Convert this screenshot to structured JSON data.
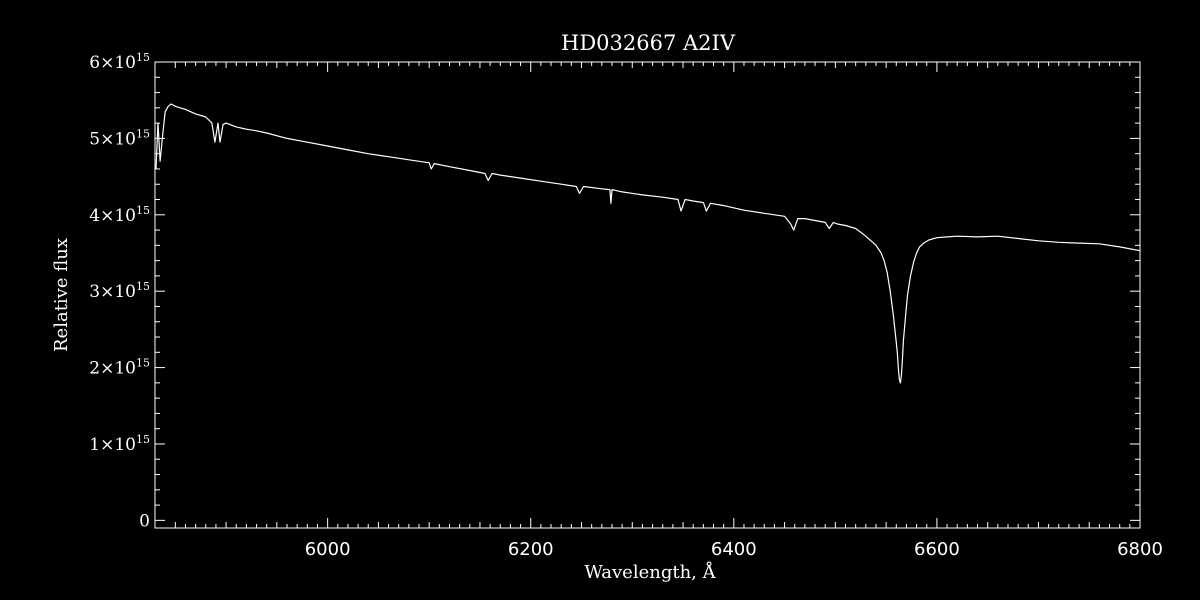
{
  "chart_data": {
    "type": "line",
    "title": "HD032667   A2IV",
    "xlabel": "Wavelength, Å",
    "ylabel": "Relative flux",
    "xlim": [
      5830,
      6800
    ],
    "ylim": [
      -0.1,
      6.0
    ],
    "y_exponent": "15",
    "x_ticks": [
      6000,
      6200,
      6400,
      6600,
      6800
    ],
    "x_tick_labels": [
      "6000",
      "6200",
      "6400",
      "6600",
      "6800"
    ],
    "y_ticks": [
      0,
      1,
      2,
      3,
      4,
      5,
      6
    ],
    "y_tick_labels": [
      "0",
      "1×10",
      "2×10",
      "3×10",
      "4×10",
      "5×10",
      "6×10"
    ],
    "series": [
      {
        "color": "#ffffff",
        "x": [
          5831,
          5833,
          5835,
          5838,
          5840,
          5843,
          5846,
          5850,
          5860,
          5870,
          5880,
          5886,
          5889,
          5892,
          5894,
          5897,
          5900,
          5910,
          5920,
          5930,
          5940,
          5960,
          5980,
          6000,
          6020,
          6040,
          6060,
          6080,
          6100,
          6102,
          6105,
          6120,
          6140,
          6155,
          6158,
          6162,
          6170,
          6190,
          6210,
          6230,
          6245,
          6248,
          6252,
          6270,
          6278,
          6279,
          6280,
          6290,
          6310,
          6330,
          6345,
          6348,
          6352,
          6360,
          6370,
          6373,
          6377,
          6390,
          6410,
          6430,
          6450,
          6456,
          6459,
          6463,
          6470,
          6490,
          6494,
          6498,
          6502,
          6510,
          6520,
          6530,
          6540,
          6545,
          6548,
          6551,
          6554,
          6557,
          6559,
          6561,
          6562,
          6563,
          6564,
          6565,
          6566,
          6567,
          6569,
          6571,
          6574,
          6577,
          6580,
          6583,
          6587,
          6592,
          6600,
          6610,
          6620,
          6640,
          6660,
          6680,
          6700,
          6720,
          6740,
          6760,
          6780,
          6800
        ],
        "values": [
          4.6,
          5.2,
          4.7,
          5.1,
          5.35,
          5.42,
          5.45,
          5.42,
          5.38,
          5.32,
          5.28,
          5.2,
          4.95,
          5.2,
          4.95,
          5.18,
          5.2,
          5.15,
          5.12,
          5.1,
          5.07,
          5.0,
          4.95,
          4.9,
          4.85,
          4.8,
          4.76,
          4.72,
          4.68,
          4.6,
          4.67,
          4.63,
          4.58,
          4.54,
          4.45,
          4.54,
          4.52,
          4.48,
          4.44,
          4.4,
          4.37,
          4.28,
          4.37,
          4.34,
          4.33,
          4.15,
          4.33,
          4.3,
          4.26,
          4.23,
          4.2,
          4.05,
          4.2,
          4.18,
          4.16,
          4.05,
          4.15,
          4.12,
          4.06,
          4.02,
          3.98,
          3.88,
          3.8,
          3.95,
          3.95,
          3.9,
          3.82,
          3.9,
          3.88,
          3.86,
          3.82,
          3.72,
          3.6,
          3.5,
          3.4,
          3.25,
          3.0,
          2.7,
          2.45,
          2.2,
          2.0,
          1.85,
          1.8,
          1.9,
          2.1,
          2.35,
          2.65,
          2.95,
          3.2,
          3.38,
          3.5,
          3.58,
          3.63,
          3.67,
          3.7,
          3.71,
          3.72,
          3.71,
          3.72,
          3.69,
          3.66,
          3.64,
          3.63,
          3.62,
          3.58,
          3.53
        ]
      }
    ]
  }
}
